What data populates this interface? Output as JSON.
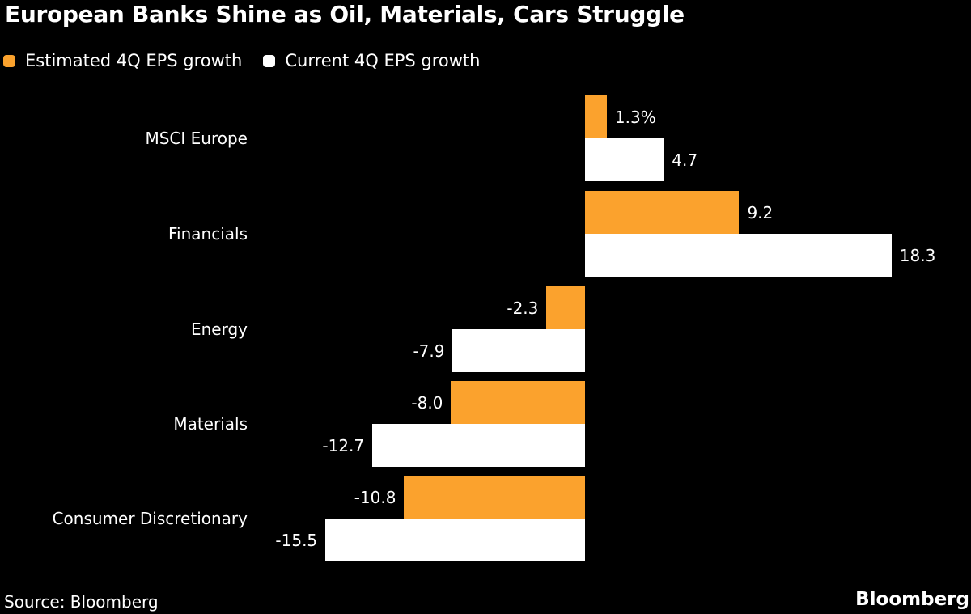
{
  "title": "European Banks Shine as Oil, Materials, Cars Struggle",
  "legend": [
    {
      "label": "Estimated 4Q EPS growth",
      "color": "#FBA22D"
    },
    {
      "label": "Current 4Q EPS growth",
      "color": "#FFFFFF"
    }
  ],
  "source": "Source: Bloomberg",
  "brand": "Bloomberg",
  "colors": {
    "background": "#000000",
    "text": "#FFFFFF",
    "estimated_bar": "#FBA22D",
    "current_bar": "#FFFFFF"
  },
  "chart_data": {
    "type": "bar",
    "orientation": "horizontal",
    "title": "European Banks Shine as Oil, Materials, Cars Struggle",
    "categories": [
      "MSCI Europe",
      "Financials",
      "Energy",
      "Materials",
      "Consumer Discretionary"
    ],
    "series": [
      {
        "name": "Estimated 4Q EPS growth",
        "color": "#FBA22D",
        "values": [
          1.3,
          9.2,
          -2.3,
          -8.0,
          -10.8
        ],
        "labels": [
          "1.3%",
          "9.2",
          "-2.3",
          "-8.0",
          "-10.8"
        ]
      },
      {
        "name": "Current 4Q EPS growth",
        "color": "#FFFFFF",
        "values": [
          4.7,
          18.3,
          -7.9,
          -12.7,
          -15.5
        ],
        "labels": [
          "4.7",
          "18.3",
          "-7.9",
          "-12.7",
          "-15.5"
        ]
      }
    ],
    "xlim": [
      -15.5,
      18.3
    ],
    "grid": false,
    "axis_lines": false,
    "legend_position": "top-left",
    "value_labels": "outside bar ends"
  }
}
